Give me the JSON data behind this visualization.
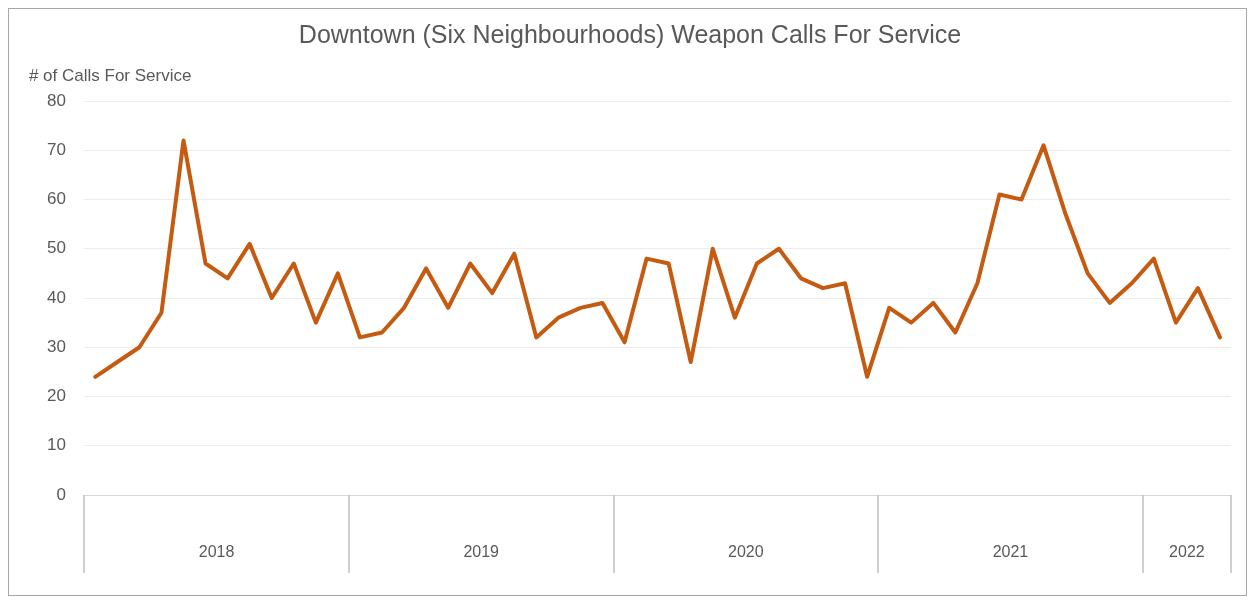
{
  "chart_data": {
    "type": "line",
    "title": "Downtown (Six Neighbourhoods) Weapon Calls For Service",
    "ylabel": "# of Calls For Service",
    "x": [
      "2018-01",
      "2018-02",
      "2018-03",
      "2018-04",
      "2018-05",
      "2018-06",
      "2018-07",
      "2018-08",
      "2018-09",
      "2018-10",
      "2018-11",
      "2018-12",
      "2019-01",
      "2019-02",
      "2019-03",
      "2019-04",
      "2019-05",
      "2019-06",
      "2019-07",
      "2019-08",
      "2019-09",
      "2019-10",
      "2019-11",
      "2019-12",
      "2020-01",
      "2020-02",
      "2020-03",
      "2020-04",
      "2020-05",
      "2020-06",
      "2020-07",
      "2020-08",
      "2020-09",
      "2020-10",
      "2020-11",
      "2020-12",
      "2021-01",
      "2021-02",
      "2021-03",
      "2021-04",
      "2021-05",
      "2021-06",
      "2021-07",
      "2021-08",
      "2021-09",
      "2021-10",
      "2021-11",
      "2021-12",
      "2022-01",
      "2022-02",
      "2022-03",
      "2022-04"
    ],
    "series": [
      {
        "color": "#c55a11",
        "values": [
          24,
          27,
          30,
          37,
          72,
          47,
          44,
          51,
          40,
          47,
          35,
          45,
          32,
          33,
          38,
          46,
          38,
          47,
          41,
          49,
          32,
          36,
          38,
          39,
          31,
          48,
          47,
          27,
          50,
          36,
          47,
          50,
          44,
          42,
          43,
          24,
          38,
          35,
          39,
          33,
          43,
          61,
          60,
          71,
          57,
          45,
          39,
          43,
          48,
          35,
          42,
          32
        ]
      }
    ],
    "xlim": [
      "2017-12-16",
      "2022-04-16"
    ],
    "xticks": [
      {
        "value": "2018-06-16",
        "label": "2018"
      },
      {
        "value": "2019-06-16",
        "label": "2019"
      },
      {
        "value": "2020-06-16",
        "label": "2020"
      },
      {
        "value": "2021-06-16",
        "label": "2021"
      },
      {
        "value": "2022-02-15",
        "label": "2022"
      }
    ],
    "ylim": [
      0,
      80
    ],
    "yticks": [
      0,
      10,
      20,
      30,
      40,
      50,
      60,
      70,
      80
    ],
    "grid": "y",
    "legend": false,
    "marker": "none",
    "line_style": "solid"
  }
}
